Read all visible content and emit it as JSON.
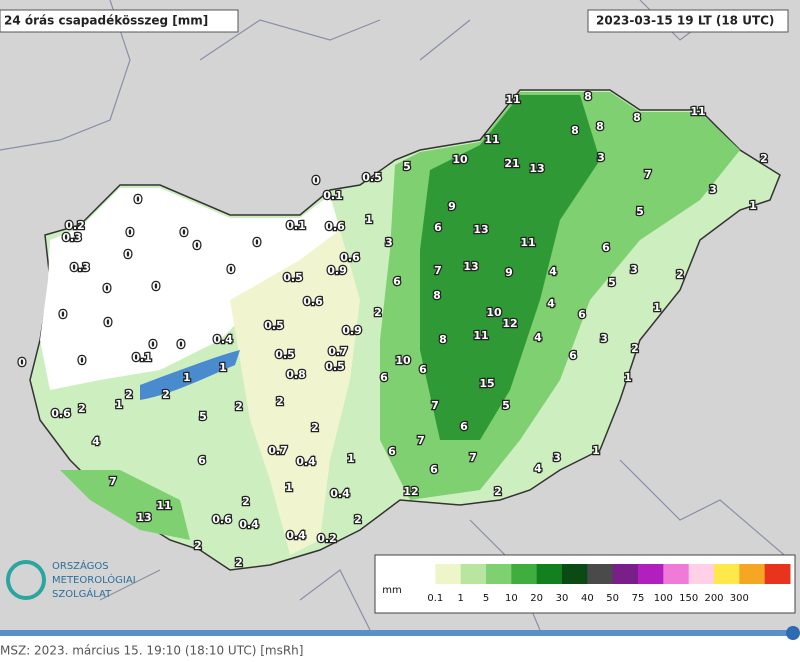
{
  "header": {
    "title": "24 órás csapadékösszeg [mm]",
    "time": "2023-03-15 19 LT (18 UTC)"
  },
  "stations": [
    11,
    8,
    11,
    8,
    8,
    8,
    11,
    10,
    21,
    13,
    3,
    2,
    7,
    3,
    1,
    5,
    0,
    0.1,
    0.5,
    5,
    0,
    9,
    0.2,
    0.3,
    0,
    0,
    0.1,
    0.6,
    1,
    6,
    13,
    11,
    0,
    0,
    3,
    6,
    0,
    0.6,
    0.3,
    0,
    0.9,
    7,
    13,
    9,
    4,
    3,
    2,
    5,
    0,
    0,
    0.5,
    6,
    8,
    4,
    0.6,
    0,
    0,
    2,
    10,
    12,
    6,
    1,
    0.5,
    0.9,
    0.4,
    0,
    0,
    8,
    11,
    4,
    3,
    0,
    0,
    0.1,
    0.7,
    0.5,
    10,
    2,
    6,
    1,
    1,
    0.8,
    0.5,
    6,
    6,
    15,
    1,
    2,
    2,
    1,
    0.6,
    2,
    2,
    2,
    7,
    5,
    5,
    4,
    2,
    7,
    6,
    0.7,
    6,
    1,
    1,
    3,
    7,
    0.4,
    6,
    4,
    6,
    7,
    1,
    0.4,
    12,
    2,
    11,
    2,
    13,
    0.6,
    0.4,
    2,
    0.4,
    0.2,
    2,
    2
  ],
  "legend": {
    "unit": "mm",
    "labels": [
      0.1,
      1,
      5,
      10,
      20,
      30,
      40,
      50,
      75,
      100,
      150,
      200,
      300
    ],
    "colors": [
      "#ffffff",
      "#eef5c8",
      "#b8e6a0",
      "#7fd070",
      "#3fae3f",
      "#12801e",
      "#0b4a14",
      "#4a4a4a",
      "#7a1f8a",
      "#b21fbf",
      "#f07ad8",
      "#ffd0e6",
      "#ffe84a",
      "#f5a623",
      "#e8341c"
    ]
  },
  "logo": {
    "line1": "ORSZÁGOS",
    "line2": "METEOROLÓGIAI",
    "line3": "SZOLGÁLAT"
  },
  "footer": {
    "text": "MSZ: 2023. március 15. 19:10 (18:10 UTC)  [msRh]"
  }
}
